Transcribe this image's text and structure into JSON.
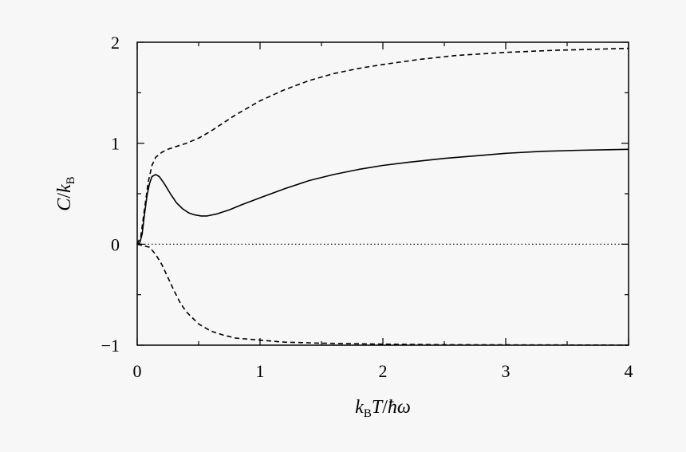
{
  "chart_data": {
    "type": "line",
    "xlabel_parts": {
      "k": "k",
      "k_sub": "B",
      "T": "T",
      "slash": "/",
      "hbar": "ħ",
      "omega": "ω"
    },
    "ylabel_parts": {
      "C": "C",
      "slash": "/",
      "k": "k",
      "k_sub": "B"
    },
    "xlim": [
      0,
      4
    ],
    "ylim": [
      -1,
      2
    ],
    "x_ticks": [
      0,
      1,
      2,
      3,
      4
    ],
    "x_tick_labels": [
      "0",
      "1",
      "2",
      "3",
      "4"
    ],
    "x_minor_ticks": [
      0.5,
      1.5,
      2.5,
      3.5
    ],
    "y_ticks": [
      -1,
      0,
      1,
      2
    ],
    "y_tick_labels": [
      "−1",
      "0",
      "1",
      "2"
    ],
    "y_minor_ticks": [
      -0.5,
      0.5,
      1.5
    ],
    "grid": false,
    "legend": "none",
    "series": [
      {
        "style": "solid",
        "points": [
          [
            0.0,
            0.0
          ],
          [
            0.02,
            0.01
          ],
          [
            0.04,
            0.1
          ],
          [
            0.06,
            0.3
          ],
          [
            0.08,
            0.48
          ],
          [
            0.1,
            0.6
          ],
          [
            0.12,
            0.67
          ],
          [
            0.15,
            0.69
          ],
          [
            0.18,
            0.67
          ],
          [
            0.22,
            0.6
          ],
          [
            0.27,
            0.5
          ],
          [
            0.32,
            0.41
          ],
          [
            0.37,
            0.35
          ],
          [
            0.42,
            0.31
          ],
          [
            0.47,
            0.29
          ],
          [
            0.52,
            0.28
          ],
          [
            0.57,
            0.28
          ],
          [
            0.65,
            0.3
          ],
          [
            0.75,
            0.34
          ],
          [
            0.85,
            0.39
          ],
          [
            1.0,
            0.46
          ],
          [
            1.2,
            0.55
          ],
          [
            1.4,
            0.63
          ],
          [
            1.6,
            0.69
          ],
          [
            1.8,
            0.74
          ],
          [
            2.0,
            0.78
          ],
          [
            2.2,
            0.81
          ],
          [
            2.5,
            0.85
          ],
          [
            2.8,
            0.88
          ],
          [
            3.0,
            0.9
          ],
          [
            3.3,
            0.92
          ],
          [
            3.6,
            0.93
          ],
          [
            4.0,
            0.94
          ]
        ]
      },
      {
        "style": "dashed",
        "points": [
          [
            0.0,
            0.0
          ],
          [
            0.03,
            0.08
          ],
          [
            0.06,
            0.35
          ],
          [
            0.09,
            0.62
          ],
          [
            0.12,
            0.78
          ],
          [
            0.15,
            0.86
          ],
          [
            0.2,
            0.91
          ],
          [
            0.25,
            0.94
          ],
          [
            0.3,
            0.96
          ],
          [
            0.35,
            0.98
          ],
          [
            0.4,
            1.0
          ],
          [
            0.5,
            1.05
          ],
          [
            0.6,
            1.12
          ],
          [
            0.7,
            1.2
          ],
          [
            0.8,
            1.28
          ],
          [
            0.9,
            1.35
          ],
          [
            1.0,
            1.42
          ],
          [
            1.2,
            1.53
          ],
          [
            1.4,
            1.62
          ],
          [
            1.6,
            1.69
          ],
          [
            1.8,
            1.74
          ],
          [
            2.0,
            1.78
          ],
          [
            2.3,
            1.83
          ],
          [
            2.6,
            1.87
          ],
          [
            3.0,
            1.9
          ],
          [
            3.4,
            1.92
          ],
          [
            3.7,
            1.93
          ],
          [
            4.0,
            1.94
          ]
        ]
      },
      {
        "style": "dashed",
        "points": [
          [
            0.0,
            0.0
          ],
          [
            0.1,
            -0.03
          ],
          [
            0.15,
            -0.1
          ],
          [
            0.2,
            -0.2
          ],
          [
            0.25,
            -0.33
          ],
          [
            0.3,
            -0.46
          ],
          [
            0.35,
            -0.58
          ],
          [
            0.4,
            -0.67
          ],
          [
            0.5,
            -0.79
          ],
          [
            0.6,
            -0.86
          ],
          [
            0.7,
            -0.9
          ],
          [
            0.8,
            -0.93
          ],
          [
            1.0,
            -0.95
          ],
          [
            1.2,
            -0.97
          ],
          [
            1.5,
            -0.98
          ],
          [
            2.0,
            -0.99
          ],
          [
            2.5,
            -0.995
          ],
          [
            3.0,
            -0.997
          ],
          [
            4.0,
            -0.999
          ]
        ]
      },
      {
        "style": "dotted",
        "points": [
          [
            0.0,
            0.0
          ],
          [
            4.0,
            0.0
          ]
        ]
      }
    ]
  }
}
